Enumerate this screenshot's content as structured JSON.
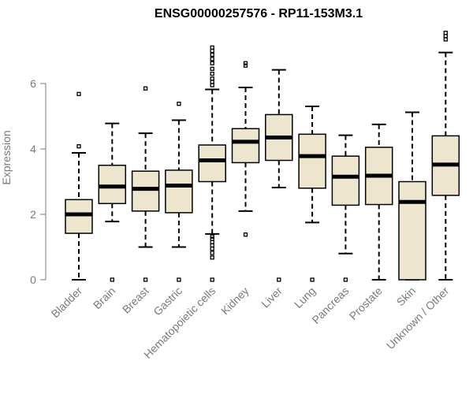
{
  "chart_data": {
    "type": "boxplot",
    "title": "ENSG00000257576 - RP11-153M3.1",
    "ylabel": "Expression",
    "xlabel": "",
    "ylim": [
      0,
      7.4
    ],
    "yticks": [
      0,
      2,
      4,
      6
    ],
    "box_fill": "#ede5cd",
    "axis_color": "#7a7a7a",
    "categories": [
      "Bladder",
      "Brain",
      "Breast",
      "Gastric",
      "Hematopoietic cells",
      "Kidney",
      "Liver",
      "Lung",
      "Pancreas",
      "Prostate",
      "Skin",
      "Unknown / Other"
    ],
    "boxes": [
      {
        "min": 0.0,
        "q1": 1.42,
        "median": 2.0,
        "q3": 2.45,
        "max": 3.88,
        "outliers": [
          4.08,
          5.68
        ]
      },
      {
        "min": 1.78,
        "q1": 2.33,
        "median": 2.85,
        "q3": 3.5,
        "max": 4.78,
        "outliers": [
          0.0
        ]
      },
      {
        "min": 1.0,
        "q1": 2.1,
        "median": 2.78,
        "q3": 3.32,
        "max": 4.48,
        "outliers": [
          0.0,
          5.85
        ]
      },
      {
        "min": 1.0,
        "q1": 2.05,
        "median": 2.88,
        "q3": 3.35,
        "max": 4.88,
        "outliers": [
          0.0,
          5.38
        ]
      },
      {
        "min": 1.4,
        "q1": 3.0,
        "median": 3.65,
        "q3": 4.12,
        "max": 5.82,
        "outliers": [
          0.0,
          0.68,
          0.82,
          0.95,
          1.05,
          1.15,
          1.25,
          1.32,
          5.95,
          6.05,
          6.15,
          6.3,
          6.45,
          6.62,
          6.75,
          6.88,
          7.0,
          7.1
        ]
      },
      {
        "min": 2.1,
        "q1": 3.58,
        "median": 4.22,
        "q3": 4.62,
        "max": 5.88,
        "outliers": [
          1.38,
          6.55,
          6.62
        ]
      },
      {
        "min": 2.82,
        "q1": 3.65,
        "median": 4.35,
        "q3": 5.05,
        "max": 6.42,
        "outliers": [
          0.0
        ]
      },
      {
        "min": 1.75,
        "q1": 2.8,
        "median": 3.78,
        "q3": 4.45,
        "max": 5.3,
        "outliers": [
          0.0
        ]
      },
      {
        "min": 0.8,
        "q1": 2.28,
        "median": 3.15,
        "q3": 3.78,
        "max": 4.42,
        "outliers": [
          0.0
        ]
      },
      {
        "min": 0.0,
        "q1": 2.3,
        "median": 3.18,
        "q3": 4.05,
        "max": 4.75,
        "outliers": []
      },
      {
        "min": 0.0,
        "q1": 0.0,
        "median": 2.38,
        "q3": 3.0,
        "max": 5.12,
        "outliers": []
      },
      {
        "min": 0.0,
        "q1": 2.58,
        "median": 3.52,
        "q3": 4.4,
        "max": 6.95,
        "outliers": [
          7.35,
          7.45,
          7.55
        ]
      }
    ]
  }
}
